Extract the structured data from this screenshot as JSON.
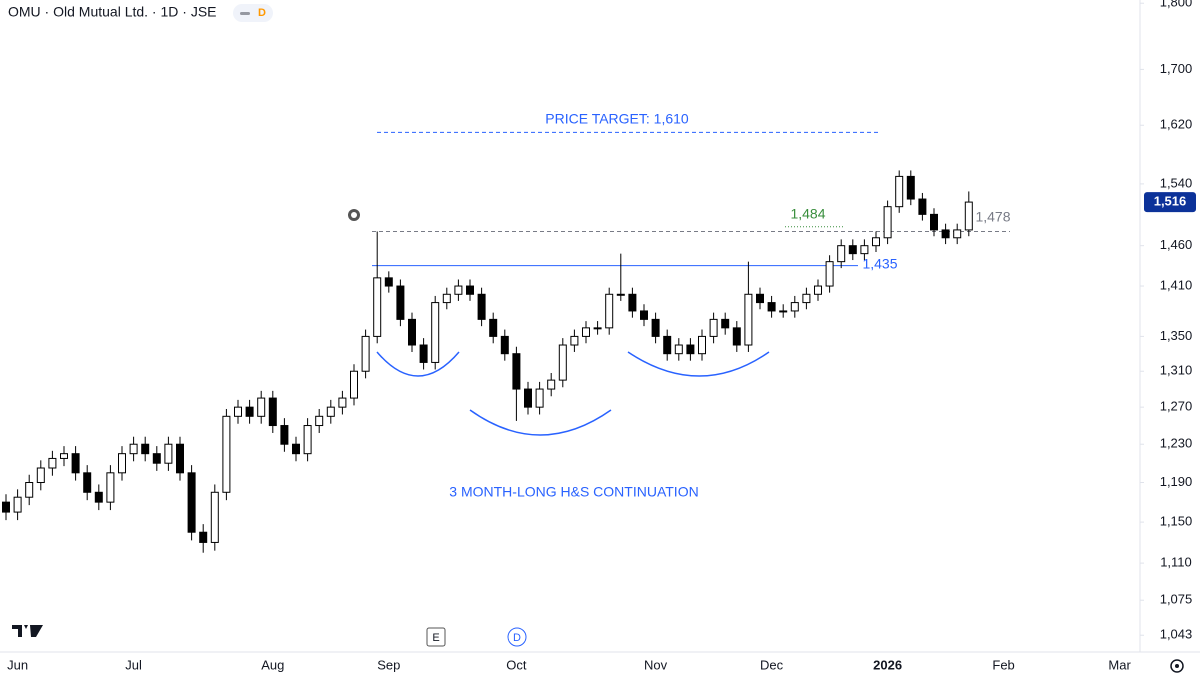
{
  "chart_data": {
    "type": "candlestick",
    "title": "OMU · Old Mutual Ltd. · 1D · JSE",
    "badge": "D",
    "categories": [
      null,
      "Jun",
      null,
      null,
      null,
      null,
      null,
      null,
      null,
      null,
      null,
      "Jul",
      null,
      null,
      null,
      null,
      null,
      null,
      null,
      null,
      null,
      null,
      null,
      "Aug",
      null,
      null,
      null,
      null,
      null,
      null,
      null,
      null,
      null,
      "Sep",
      null,
      null,
      null,
      null,
      null,
      null,
      null,
      null,
      null,
      null,
      "Oct",
      null,
      null,
      null,
      null,
      null,
      null,
      null,
      null,
      null,
      null,
      null,
      "Nov",
      null,
      null,
      null,
      null,
      null,
      null,
      null,
      null,
      null,
      "Dec",
      null,
      null,
      null,
      null,
      null,
      null,
      null,
      null,
      null,
      "2026",
      null,
      null,
      null,
      null,
      null,
      null,
      null,
      null,
      null,
      "Feb",
      null,
      null,
      null,
      null,
      null,
      null,
      null,
      null,
      null,
      "Mar",
      null
    ],
    "open": [
      1170,
      1160,
      1175,
      1190,
      1205,
      1215,
      1220,
      1200,
      1180,
      1170,
      1200,
      1220,
      1230,
      1220,
      1210,
      1230,
      1200,
      1140,
      1130,
      1180,
      1260,
      1270,
      1260,
      1280,
      1250,
      1230,
      1220,
      1250,
      1260,
      1270,
      1280,
      1310,
      1350,
      1420,
      1410,
      1370,
      1340,
      1320,
      1390,
      1400,
      1410,
      1400,
      1370,
      1350,
      1330,
      1290,
      1270,
      1290,
      1300,
      1340,
      1350,
      1360,
      1360,
      1400,
      1400,
      1380,
      1370,
      1350,
      1330,
      1340,
      1330,
      1350,
      1370,
      1360,
      1340,
      1400,
      1390,
      1380,
      1380,
      1390,
      1400,
      1410,
      1440,
      1460,
      1450,
      1460,
      1470,
      1510,
      1550,
      1520,
      1500,
      1480,
      1470,
      1480,
      null,
      null,
      null,
      null,
      null,
      null,
      null,
      null,
      null,
      null,
      null,
      null,
      null,
      null
    ],
    "high": [
      1178,
      1183,
      1198,
      1213,
      1223,
      1228,
      1228,
      1208,
      1188,
      1208,
      1228,
      1238,
      1238,
      1228,
      1238,
      1238,
      1208,
      1148,
      1188,
      1268,
      1278,
      1278,
      1288,
      1288,
      1258,
      1238,
      1258,
      1268,
      1278,
      1288,
      1318,
      1358,
      1478,
      1428,
      1418,
      1378,
      1348,
      1398,
      1408,
      1418,
      1418,
      1408,
      1378,
      1358,
      1338,
      1298,
      1298,
      1308,
      1348,
      1358,
      1368,
      1368,
      1408,
      1450,
      1408,
      1388,
      1378,
      1358,
      1348,
      1348,
      1358,
      1378,
      1378,
      1368,
      1440,
      1408,
      1398,
      1388,
      1398,
      1408,
      1418,
      1448,
      1468,
      1468,
      1468,
      1478,
      1518,
      1558,
      1558,
      1528,
      1508,
      1488,
      1488,
      1530,
      null,
      null,
      null,
      null,
      null,
      null,
      null,
      null,
      null,
      null,
      null,
      null,
      null,
      null
    ],
    "low": [
      1152,
      1152,
      1167,
      1182,
      1197,
      1207,
      1192,
      1172,
      1162,
      1162,
      1192,
      1212,
      1212,
      1202,
      1202,
      1192,
      1132,
      1120,
      1122,
      1172,
      1252,
      1252,
      1252,
      1242,
      1222,
      1212,
      1212,
      1242,
      1252,
      1262,
      1272,
      1302,
      1342,
      1402,
      1362,
      1332,
      1312,
      1312,
      1382,
      1392,
      1392,
      1362,
      1342,
      1322,
      1255,
      1262,
      1262,
      1282,
      1292,
      1332,
      1342,
      1352,
      1352,
      1392,
      1372,
      1362,
      1342,
      1322,
      1322,
      1322,
      1322,
      1342,
      1352,
      1332,
      1332,
      1382,
      1372,
      1372,
      1372,
      1382,
      1392,
      1402,
      1432,
      1442,
      1442,
      1452,
      1462,
      1502,
      1512,
      1492,
      1472,
      1462,
      1462,
      1472,
      null,
      null,
      null,
      null,
      null,
      null,
      null,
      null,
      null,
      null,
      null,
      null,
      null,
      null
    ],
    "close": [
      1160,
      1175,
      1190,
      1205,
      1215,
      1220,
      1200,
      1180,
      1170,
      1200,
      1220,
      1230,
      1220,
      1210,
      1230,
      1200,
      1140,
      1130,
      1180,
      1260,
      1270,
      1260,
      1280,
      1250,
      1230,
      1220,
      1250,
      1260,
      1270,
      1280,
      1310,
      1350,
      1420,
      1410,
      1370,
      1340,
      1320,
      1390,
      1400,
      1410,
      1400,
      1370,
      1350,
      1330,
      1290,
      1270,
      1290,
      1300,
      1340,
      1350,
      1360,
      1360,
      1400,
      1400,
      1380,
      1370,
      1350,
      1330,
      1340,
      1330,
      1350,
      1370,
      1360,
      1340,
      1400,
      1390,
      1380,
      1380,
      1390,
      1400,
      1410,
      1440,
      1460,
      1450,
      1460,
      1470,
      1510,
      1550,
      1520,
      1500,
      1480,
      1470,
      1480,
      1516,
      null,
      null,
      null,
      null,
      null,
      null,
      null,
      null,
      null,
      null,
      null,
      null,
      null,
      null
    ],
    "up_color": "#ffffff",
    "down_color": "#000000",
    "wick_color": "#000000",
    "log_scale": true,
    "ylim": [
      1028,
      1805
    ],
    "yticks": [
      {
        "value": 1043,
        "label": "1,043"
      },
      {
        "value": 1075,
        "label": "1,075"
      },
      {
        "value": 1110,
        "label": "1,110"
      },
      {
        "value": 1150,
        "label": "1,150"
      },
      {
        "value": 1190,
        "label": "1,190"
      },
      {
        "value": 1230,
        "label": "1,230"
      },
      {
        "value": 1270,
        "label": "1,270"
      },
      {
        "value": 1310,
        "label": "1,310"
      },
      {
        "value": 1350,
        "label": "1,350"
      },
      {
        "value": 1410,
        "label": "1,410"
      },
      {
        "value": 1460,
        "label": "1,460"
      },
      {
        "value": 1540,
        "label": "1,540"
      },
      {
        "value": 1620,
        "label": "1,620"
      },
      {
        "value": 1700,
        "label": "1,700"
      },
      {
        "value": 1800,
        "label": "1,800"
      }
    ],
    "last_price": {
      "value": 1516,
      "label": "1,516",
      "color": "#0c3299"
    },
    "levels": [
      {
        "value": 1610,
        "label": "PRICE TARGET: 1,610",
        "color": "#2962ff",
        "style": "dashed"
      },
      {
        "value": 1435,
        "label": "1,435",
        "color": "#2962ff",
        "style": "solid"
      },
      {
        "value": 1484,
        "label": "1,484",
        "color": "#388e3c",
        "style": "dotted"
      },
      {
        "value": 1478,
        "label": "1,478",
        "color": "#787b86",
        "style": "dashed"
      }
    ],
    "note": "3 MONTH-LONG H&S CONTINUATION",
    "markers": [
      "E",
      "D"
    ]
  }
}
